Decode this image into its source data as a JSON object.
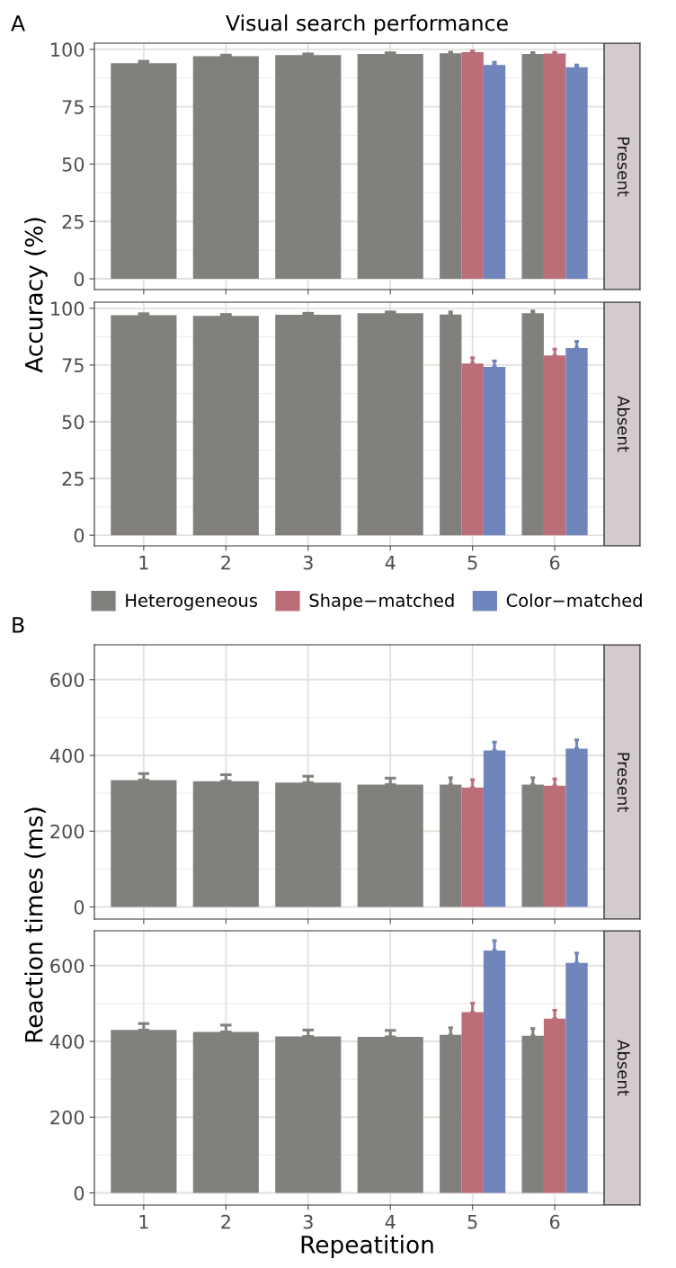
{
  "chart_data": [
    {
      "type": "bar",
      "title": "Visual search performance",
      "subtitle": "Present",
      "ylabel": "Accuracy (%)",
      "annotations": [
        "A"
      ],
      "categories": [
        "1",
        "2",
        "3",
        "4",
        "5",
        "6"
      ],
      "ylim": [
        -4.7,
        102.7
      ],
      "yticks": [
        0,
        25,
        50,
        75,
        100
      ],
      "grid": true,
      "tick_labels": "y",
      "series": [
        {
          "color": "#82807c",
          "values": [
            94,
            97,
            97.5,
            98,
            98.3,
            98
          ],
          "errors": [
            [
              94,
              94.8
            ],
            [
              97,
              97.5
            ],
            [
              97.5,
              98
            ],
            [
              98,
              98.5
            ],
            [
              98.3,
              98.8
            ],
            [
              98,
              98.6
            ]
          ]
        },
        {
          "color": "#bb6d78",
          "values": [
            null,
            null,
            null,
            null,
            98.8,
            98.2
          ],
          "errors": [
            null,
            null,
            null,
            null,
            [
              98.8,
              99.3
            ],
            [
              98.2,
              98.7
            ]
          ]
        },
        {
          "color": "#7085bb",
          "values": [
            null,
            null,
            null,
            null,
            93.2,
            92.2
          ],
          "errors": [
            null,
            null,
            null,
            null,
            [
              93.2,
              94.4
            ],
            [
              92.2,
              93.2
            ]
          ]
        }
      ]
    },
    {
      "type": "bar",
      "subtitle": "Absent",
      "categories": [
        "1",
        "2",
        "3",
        "4",
        "5",
        "6"
      ],
      "ylim": [
        -4.7,
        102.7
      ],
      "yticks": [
        0,
        25,
        50,
        75,
        100
      ],
      "grid": true,
      "legend": "bottom",
      "series": [
        {
          "name": "Heterogeneous",
          "color": "#82807c",
          "values": [
            97,
            96.7,
            97.2,
            97.8,
            97.3,
            97.8
          ],
          "errors": [
            [
              97,
              97.6
            ],
            [
              96.7,
              97.3
            ],
            [
              97.2,
              97.8
            ],
            [
              97.8,
              98.4
            ],
            [
              97.3,
              98.4
            ],
            [
              97.8,
              98.8
            ]
          ]
        },
        {
          "name": "Shape−matched",
          "color": "#bb6d78",
          "values": [
            null,
            null,
            null,
            null,
            75.7,
            79.2
          ],
          "errors": [
            null,
            null,
            null,
            null,
            [
              75.7,
              78.2
            ],
            [
              79.2,
              82
            ]
          ]
        },
        {
          "name": "Color−matched",
          "color": "#7085bb",
          "values": [
            null,
            null,
            null,
            null,
            74.2,
            82.5
          ],
          "errors": [
            null,
            null,
            null,
            null,
            [
              74.2,
              76.8
            ],
            [
              82.5,
              85.4
            ]
          ]
        }
      ]
    },
    {
      "type": "bar",
      "subtitle": "Present",
      "ylabel": "Reaction times (ms)",
      "annotations": [
        "B"
      ],
      "categories": [
        "1",
        "2",
        "3",
        "4",
        "5",
        "6"
      ],
      "ylim": [
        -32,
        692
      ],
      "yticks": [
        0,
        200,
        400,
        600
      ],
      "grid": true,
      "tick_labels": "y",
      "series": [
        {
          "color": "#82807c",
          "values": [
            335,
            332,
            328,
            323,
            323,
            323
          ],
          "errors": [
            [
              335,
              352
            ],
            [
              332,
              349
            ],
            [
              328,
              345
            ],
            [
              323,
              340
            ],
            [
              323,
              341
            ],
            [
              323,
              341
            ]
          ]
        },
        {
          "color": "#bb6d78",
          "values": [
            null,
            null,
            null,
            null,
            315,
            320
          ],
          "errors": [
            null,
            null,
            null,
            null,
            [
              315,
              336
            ],
            [
              320,
              338
            ]
          ]
        },
        {
          "color": "#7085bb",
          "values": [
            null,
            null,
            null,
            null,
            413,
            418
          ],
          "errors": [
            null,
            null,
            null,
            null,
            [
              413,
              435
            ],
            [
              418,
              441
            ]
          ]
        }
      ]
    },
    {
      "type": "bar",
      "subtitle": "Absent",
      "xlabel": "Repeatition",
      "categories": [
        "1",
        "2",
        "3",
        "4",
        "5",
        "6"
      ],
      "ylim": [
        -32,
        692
      ],
      "yticks": [
        0,
        200,
        400,
        600
      ],
      "grid": true,
      "series": [
        {
          "color": "#82807c",
          "values": [
            430,
            425,
            413,
            412,
            417,
            415
          ],
          "errors": [
            [
              430,
              447
            ],
            [
              425,
              443
            ],
            [
              413,
              430
            ],
            [
              412,
              429
            ],
            [
              417,
              436
            ],
            [
              415,
              434
            ]
          ]
        },
        {
          "color": "#bb6d78",
          "values": [
            null,
            null,
            null,
            null,
            477,
            460
          ],
          "errors": [
            null,
            null,
            null,
            null,
            [
              477,
              501
            ],
            [
              460,
              482
            ]
          ]
        },
        {
          "color": "#7085bb",
          "values": [
            null,
            null,
            null,
            null,
            640,
            607
          ],
          "errors": [
            null,
            null,
            null,
            null,
            [
              640,
              666
            ],
            [
              607,
              633
            ]
          ]
        }
      ]
    }
  ]
}
